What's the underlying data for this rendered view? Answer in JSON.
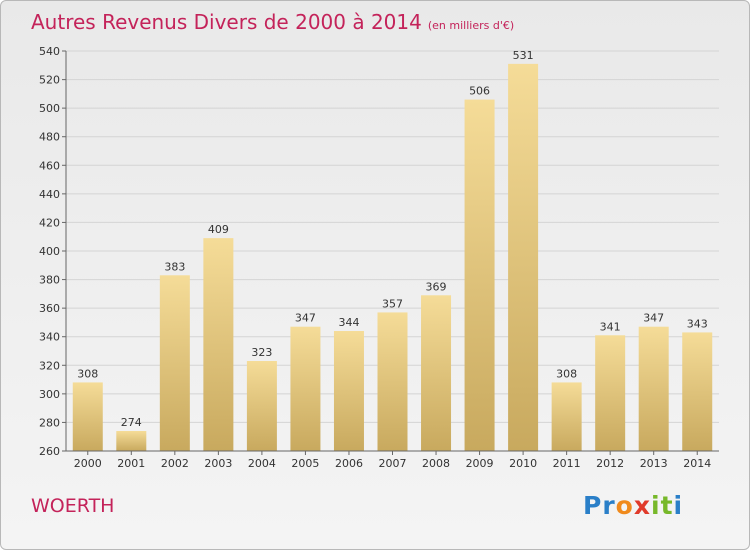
{
  "title": "Autres Revenus Divers de 2000 à 2014",
  "unit": "(en milliers d'€)",
  "town": "WOERTH",
  "logo": {
    "text": "Proxiti",
    "letters": [
      "P",
      "r",
      "o",
      "x",
      "i",
      "t",
      "i"
    ],
    "colors": [
      "#2a7fc8",
      "#2a7fc8",
      "#f08a1c",
      "#e03a2a",
      "#77b82a",
      "#77b82a",
      "#2a7fc8"
    ]
  },
  "colors": {
    "title": "#c4235a",
    "bar_top": "#f5dc98",
    "bar_bottom": "#c8a95e",
    "grid": "#d4d4d4"
  },
  "chart_data": {
    "type": "bar",
    "categories": [
      "2000",
      "2001",
      "2002",
      "2003",
      "2004",
      "2005",
      "2006",
      "2007",
      "2008",
      "2009",
      "2010",
      "2011",
      "2012",
      "2013",
      "2014"
    ],
    "values": [
      308,
      274,
      383,
      409,
      323,
      347,
      344,
      357,
      369,
      506,
      531,
      308,
      341,
      347,
      343
    ],
    "ylim": [
      260,
      540
    ],
    "yticks": [
      260,
      280,
      300,
      320,
      340,
      360,
      380,
      400,
      420,
      440,
      460,
      480,
      500,
      520,
      540
    ],
    "grid": true,
    "xlabel": "",
    "ylabel": ""
  }
}
